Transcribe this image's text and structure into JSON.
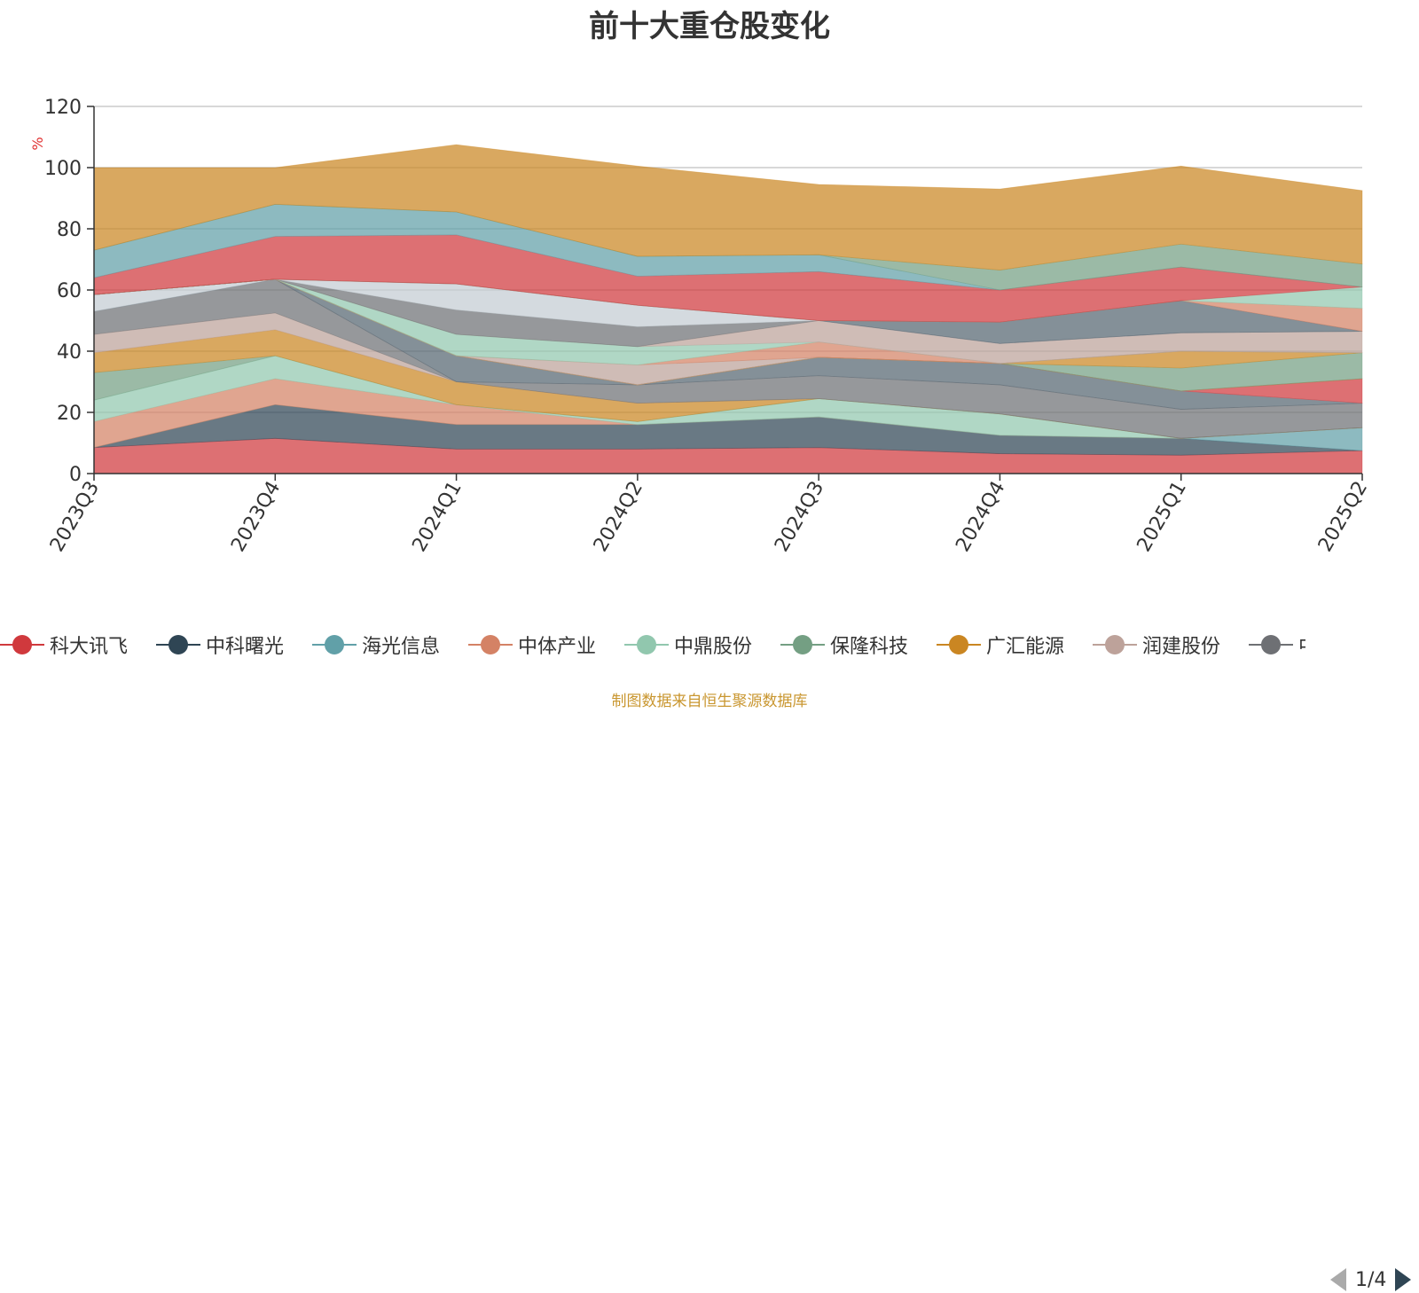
{
  "chart_data": {
    "type": "area",
    "stacked": true,
    "title": "前十大重仓股变化",
    "ylabel": "%",
    "ylim": [
      0,
      120
    ],
    "yticks": [
      0,
      20,
      40,
      60,
      80,
      100,
      120
    ],
    "grid": true,
    "legend_position": "bottom",
    "categories": [
      "2023Q3",
      "2023Q4",
      "2024Q1",
      "2024Q2",
      "2024Q3",
      "2024Q4",
      "2025Q1",
      "2025Q2"
    ],
    "series": [
      {
        "name": "科大讯飞",
        "color": "#d0393d",
        "values": [
          8.5,
          11.5,
          8,
          8,
          8.5,
          6.5,
          6,
          7.5
        ]
      },
      {
        "name": "中科曙光",
        "color": "#2f4554",
        "values": [
          0,
          11,
          8,
          8,
          10,
          6,
          5.5,
          0
        ]
      },
      {
        "name": "海光信息",
        "color": "#61a0a8",
        "values": [
          0,
          0,
          0,
          0,
          0,
          0,
          0,
          7.5
        ]
      },
      {
        "name": "中体产业",
        "color": "#d48265",
        "values": [
          8.5,
          8.5,
          6.5,
          0,
          0,
          0,
          0,
          0
        ]
      },
      {
        "name": "中鼎股份",
        "color": "#91c7ae",
        "values": [
          7,
          7.5,
          0,
          1,
          6,
          7,
          0,
          0
        ]
      },
      {
        "name": "保隆科技",
        "color": "#749f83",
        "values": [
          9,
          0,
          0,
          0,
          0,
          0,
          0,
          0
        ]
      },
      {
        "name": "广汇能源",
        "color": "#ca8622",
        "values": [
          6.5,
          8.5,
          7.5,
          6,
          0,
          0,
          0,
          0
        ]
      },
      {
        "name": "润建股份",
        "color": "#bda29a",
        "values": [
          6,
          5.5,
          0,
          0,
          0,
          0,
          0,
          0
        ]
      },
      {
        "name": "",
        "color": "#6e7074",
        "values": [
          7.5,
          11,
          0,
          6,
          7.5,
          9.5,
          9.5,
          8
        ]
      },
      {
        "name": "",
        "color": "#546570",
        "values": [
          0,
          0,
          8.5,
          0,
          6,
          7,
          6,
          0
        ]
      },
      {
        "name": "",
        "color": "#c4ccd3",
        "values": [
          5.5,
          0,
          0,
          0,
          0,
          0,
          0,
          0
        ]
      },
      {
        "name": "",
        "color": "#d0393d",
        "values": [
          0,
          0,
          0,
          0,
          0,
          0,
          0,
          8
        ]
      },
      {
        "name": "",
        "color": "#ca8622",
        "values": [
          0,
          0,
          0,
          0,
          0,
          0,
          0,
          0
        ]
      },
      {
        "name": "",
        "color": "#749f83",
        "values": [
          0,
          0,
          0,
          0,
          0,
          0,
          7.5,
          8.5
        ]
      },
      {
        "name": "",
        "color": "#ca8622",
        "values": [
          0,
          0,
          0,
          0,
          0,
          0,
          5.5,
          0
        ]
      },
      {
        "name": "",
        "color": "#bda29a",
        "values": [
          0,
          0,
          0,
          6.5,
          0,
          0,
          0,
          0
        ]
      },
      {
        "name": "",
        "color": "#d48265",
        "values": [
          0,
          0,
          0,
          0,
          5,
          0,
          0,
          0
        ]
      },
      {
        "name": "",
        "color": "#91c7ae",
        "values": [
          0,
          0,
          7,
          6,
          0,
          0,
          0,
          0
        ]
      },
      {
        "name": "",
        "color": "#bda29a",
        "values": [
          0,
          0,
          0,
          0,
          7,
          6.5,
          6,
          7
        ]
      },
      {
        "name": "",
        "color": "#6e7074",
        "values": [
          0,
          0,
          8,
          6.5,
          0,
          0,
          0,
          0
        ]
      },
      {
        "name": "",
        "color": "#c4ccd3",
        "values": [
          0,
          0,
          8.5,
          7,
          0,
          0,
          0,
          0
        ]
      },
      {
        "name": "",
        "color": "#546570",
        "values": [
          0,
          0,
          0,
          0,
          0,
          7,
          10.5,
          0
        ]
      },
      {
        "name": "",
        "color": "#d48265",
        "values": [
          0,
          0,
          0,
          0,
          0,
          0,
          0,
          7.5
        ]
      },
      {
        "name": "",
        "color": "#91c7ae",
        "values": [
          0,
          0,
          0,
          0,
          0,
          0,
          0,
          7
        ]
      },
      {
        "name": "",
        "color": "#d0393d",
        "values": [
          5.5,
          14,
          16,
          9.5,
          16,
          10.5,
          11,
          0
        ]
      },
      {
        "name": "",
        "color": "#61a0a8",
        "values": [
          9,
          10.5,
          7.5,
          6.5,
          5.5,
          0,
          0,
          0
        ]
      },
      {
        "name": "",
        "color": "#749f83",
        "values": [
          0,
          0,
          0,
          0,
          0,
          6.5,
          7.5,
          7.5
        ]
      },
      {
        "name": "",
        "color": "#ca8622",
        "values": [
          27,
          12,
          22,
          29.5,
          23,
          26.5,
          25.5,
          24
        ]
      }
    ]
  },
  "legend": {
    "items": [
      {
        "label": "科大讯飞",
        "color": "#d0393d"
      },
      {
        "label": "中科曙光",
        "color": "#2f4554"
      },
      {
        "label": "海光信息",
        "color": "#61a0a8"
      },
      {
        "label": "中体产业",
        "color": "#d48265"
      },
      {
        "label": "中鼎股份",
        "color": "#91c7ae"
      },
      {
        "label": "保隆科技",
        "color": "#749f83"
      },
      {
        "label": "广汇能源",
        "color": "#ca8622"
      },
      {
        "label": "润建股份",
        "color": "#bda29a"
      },
      {
        "label": "中",
        "color": "#6e7074"
      }
    ],
    "page": "1/4"
  },
  "source_note": "制图数据来自恒生聚源数据库"
}
